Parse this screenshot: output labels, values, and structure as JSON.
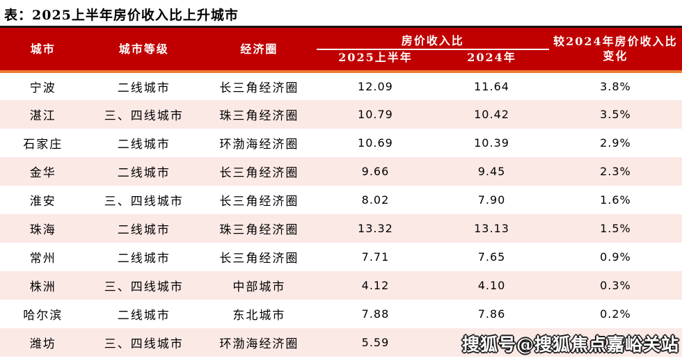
{
  "page": {
    "title": "表：2025上半年房价收入比上升城市"
  },
  "watermark": {
    "text": "搜狐号@搜狐焦点嘉峪关站"
  },
  "colors": {
    "header_red": "#C00000",
    "divider_orange": "#ED7D31",
    "row_pink": "#FBE9E6",
    "header_text": "#FFFFFF",
    "top_rule_black": "#141414"
  },
  "chart_data": {
    "type": "table",
    "title": "表：2025上半年房价收入比上升城市",
    "group_header": "房价收入比",
    "headers": {
      "city": "城市",
      "tier": "城市等级",
      "region": "经济圈",
      "h1_2025": "2025上半年",
      "y2024": "2024年",
      "change": "较2024年房价收入比变化"
    },
    "rows": [
      {
        "city": "宁波",
        "tier": "二线城市",
        "region": "长三角经济圈",
        "h1_2025": 12.09,
        "y2024": 11.64,
        "change": "3.8%"
      },
      {
        "city": "湛江",
        "tier": "三、四线城市",
        "region": "珠三角经济圈",
        "h1_2025": 10.79,
        "y2024": 10.42,
        "change": "3.5%"
      },
      {
        "city": "石家庄",
        "tier": "二线城市",
        "region": "环渤海经济圈",
        "h1_2025": 10.69,
        "y2024": 10.39,
        "change": "2.9%"
      },
      {
        "city": "金华",
        "tier": "二线城市",
        "region": "长三角经济圈",
        "h1_2025": 9.66,
        "y2024": 9.45,
        "change": "2.3%"
      },
      {
        "city": "淮安",
        "tier": "三、四线城市",
        "region": "长三角经济圈",
        "h1_2025": 8.02,
        "y2024": 7.9,
        "change": "1.6%"
      },
      {
        "city": "珠海",
        "tier": "二线城市",
        "region": "珠三角经济圈",
        "h1_2025": 13.32,
        "y2024": 13.13,
        "change": "1.5%"
      },
      {
        "city": "常州",
        "tier": "二线城市",
        "region": "长三角经济圈",
        "h1_2025": 7.71,
        "y2024": 7.65,
        "change": "0.9%"
      },
      {
        "city": "株洲",
        "tier": "三、四线城市",
        "region": "中部城市",
        "h1_2025": 4.12,
        "y2024": 4.1,
        "change": "0.3%"
      },
      {
        "city": "哈尔滨",
        "tier": "二线城市",
        "region": "东北城市",
        "h1_2025": 7.88,
        "y2024": 7.86,
        "change": "0.2%"
      },
      {
        "city": "潍坊",
        "tier": "三、四线城市",
        "region": "环渤海经济圈",
        "h1_2025": 5.59,
        "y2024": 5.58,
        "change": "0.2%"
      }
    ]
  }
}
